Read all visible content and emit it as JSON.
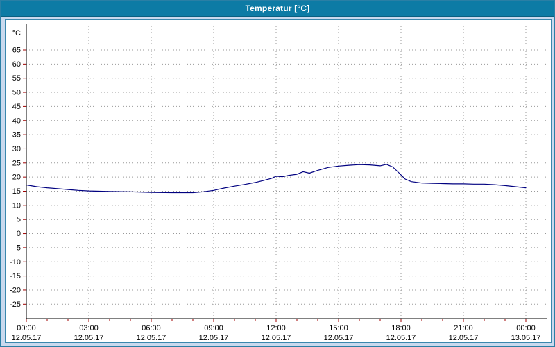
{
  "window": {
    "title": "Temperatur [°C]"
  },
  "colors": {
    "titlebar_bg": "#0d7ba5",
    "window_bg": "#c9d9ee",
    "plot_bg": "#ffffff",
    "grid": "#999999",
    "axis": "#000000",
    "tick": "#a00000",
    "series_line": "#000080",
    "label_text": "#000000"
  },
  "chart_data": {
    "type": "line",
    "title": "Temperatur [°C]",
    "unit_label": "°C",
    "ylabel": "°C",
    "xlabel": "",
    "ylim": [
      -30,
      67
    ],
    "xlim_hours": [
      0,
      24
    ],
    "grid": "dotted",
    "legend": "none",
    "yticks": [
      65,
      60,
      55,
      50,
      45,
      40,
      35,
      30,
      25,
      20,
      15,
      10,
      5,
      0,
      -5,
      -10,
      -15,
      -20,
      -25
    ],
    "xticks": [
      {
        "hour": 0,
        "time": "00:00",
        "date": "12.05.17"
      },
      {
        "hour": 3,
        "time": "03:00",
        "date": "12.05.17"
      },
      {
        "hour": 6,
        "time": "06:00",
        "date": "12.05.17"
      },
      {
        "hour": 9,
        "time": "09:00",
        "date": "12.05.17"
      },
      {
        "hour": 12,
        "time": "12:00",
        "date": "12.05.17"
      },
      {
        "hour": 15,
        "time": "15:00",
        "date": "12.05.17"
      },
      {
        "hour": 18,
        "time": "18:00",
        "date": "12.05.17"
      },
      {
        "hour": 21,
        "time": "21:00",
        "date": "12.05.17"
      },
      {
        "hour": 24,
        "time": "00:00",
        "date": "13.05.17"
      }
    ],
    "series": [
      {
        "name": "Temperatur",
        "color": "#000080",
        "points": [
          [
            0,
            17.2
          ],
          [
            0.5,
            16.6
          ],
          [
            1,
            16.2
          ],
          [
            1.5,
            15.9
          ],
          [
            2,
            15.6
          ],
          [
            2.5,
            15.3
          ],
          [
            3,
            15.1
          ],
          [
            4,
            14.9
          ],
          [
            5,
            14.8
          ],
          [
            6,
            14.6
          ],
          [
            7,
            14.5
          ],
          [
            8,
            14.5
          ],
          [
            8.5,
            14.8
          ],
          [
            9,
            15.3
          ],
          [
            9.5,
            16.1
          ],
          [
            10,
            16.8
          ],
          [
            10.5,
            17.4
          ],
          [
            11,
            18.1
          ],
          [
            11.5,
            19.0
          ],
          [
            11.8,
            19.6
          ],
          [
            12,
            20.3
          ],
          [
            12.3,
            20.1
          ],
          [
            12.6,
            20.6
          ],
          [
            13,
            21.0
          ],
          [
            13.3,
            21.9
          ],
          [
            13.6,
            21.4
          ],
          [
            14,
            22.4
          ],
          [
            14.5,
            23.4
          ],
          [
            15,
            23.9
          ],
          [
            15.5,
            24.2
          ],
          [
            16,
            24.4
          ],
          [
            16.5,
            24.3
          ],
          [
            17,
            24.0
          ],
          [
            17.3,
            24.5
          ],
          [
            17.6,
            23.6
          ],
          [
            17.9,
            21.5
          ],
          [
            18.2,
            19.3
          ],
          [
            18.5,
            18.4
          ],
          [
            19,
            17.9
          ],
          [
            19.5,
            17.8
          ],
          [
            20,
            17.7
          ],
          [
            20.5,
            17.6
          ],
          [
            21,
            17.6
          ],
          [
            21.5,
            17.5
          ],
          [
            22,
            17.5
          ],
          [
            22.5,
            17.3
          ],
          [
            23,
            17.0
          ],
          [
            23.5,
            16.6
          ],
          [
            24,
            16.2
          ]
        ]
      }
    ]
  }
}
